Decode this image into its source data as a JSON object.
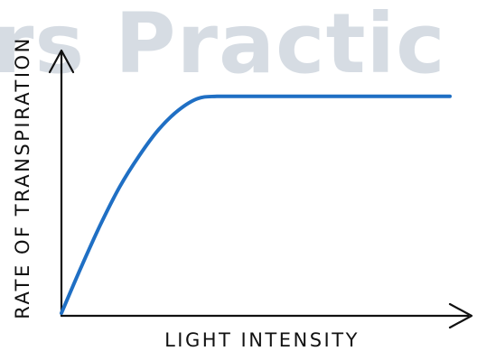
{
  "watermark": {
    "text": "rs Practic",
    "color": "#d6dce3"
  },
  "chart_data": {
    "type": "line",
    "title": "",
    "xlabel": "LIGHT INTENSITY",
    "ylabel": "RATE OF TRANSPIRATION",
    "series": [
      {
        "color": "#1f6fc4",
        "x": [
          0,
          5,
          10,
          15,
          20,
          25,
          30,
          35,
          40,
          50,
          60,
          70,
          80,
          90,
          100
        ],
        "y": [
          0,
          19,
          37,
          53,
          66,
          77,
          85,
          90,
          91,
          91,
          91,
          91,
          91,
          91,
          91
        ]
      }
    ],
    "xlim": [
      0,
      100
    ],
    "ylim": [
      0,
      100
    ],
    "xticks": false,
    "yticks": false,
    "grid": false,
    "axis_color": "#111111"
  }
}
